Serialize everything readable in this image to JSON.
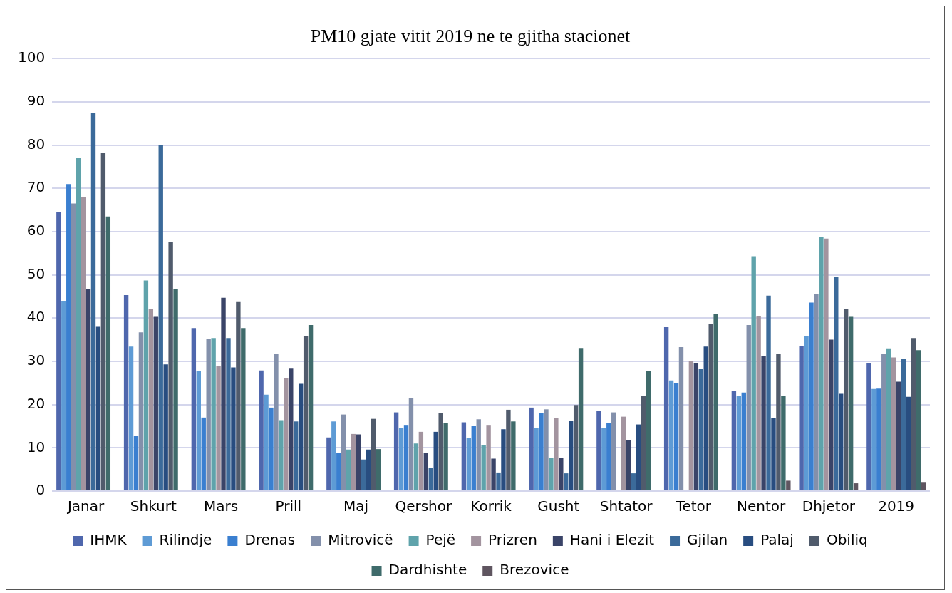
{
  "chart_data": {
    "type": "bar",
    "title": "PM10 gjate vitit 2019 ne te gjitha stacionet",
    "categories": [
      "Janar",
      "Shkurt",
      "Mars",
      "Prill",
      "Maj",
      "Qershor",
      "Korrik",
      "Gusht",
      "Shtator",
      "Tetor",
      "Nentor",
      "Dhjetor",
      "2019"
    ],
    "ylim": [
      0,
      100
    ],
    "yticks": [
      0,
      10,
      20,
      30,
      40,
      50,
      60,
      70,
      80,
      90,
      100
    ],
    "grid": "y",
    "legend": "bottom",
    "series": [
      {
        "name": "IHMK",
        "color": "#4f67ad",
        "values": [
          64.5,
          45.3,
          37.7,
          27.9,
          12.4,
          18.2,
          15.9,
          19.3,
          18.5,
          37.9,
          23.2,
          33.6,
          29.5
        ]
      },
      {
        "name": "Rilindje",
        "color": "#5e9bd5",
        "values": [
          44,
          33.4,
          27.8,
          22.3,
          16.1,
          14.5,
          12.3,
          14.6,
          14.5,
          25.6,
          22,
          35.8,
          23.6
        ]
      },
      {
        "name": "Drenas",
        "color": "#3a7fd0",
        "values": [
          71,
          12.7,
          17,
          19.3,
          8.9,
          15.3,
          15,
          18,
          15.8,
          25,
          22.8,
          43.6,
          23.7
        ]
      },
      {
        "name": "Mitrovicë",
        "color": "#8390ab",
        "values": [
          66.5,
          36.7,
          35.2,
          31.7,
          17.7,
          21.5,
          16.6,
          18.9,
          18.2,
          33.3,
          38.4,
          45.5,
          31.7
        ]
      },
      {
        "name": "Pejë",
        "color": "#5fa3ab",
        "values": [
          77,
          48.7,
          35.4,
          16.4,
          9.6,
          11,
          10.7,
          7.6,
          null,
          null,
          54.3,
          58.8,
          33
        ]
      },
      {
        "name": "Prizren",
        "color": "#a3949f",
        "values": [
          68,
          42.1,
          28.9,
          26.1,
          13.2,
          13.7,
          15.3,
          16.9,
          17.2,
          30.1,
          40.4,
          58.4,
          30.9
        ]
      },
      {
        "name": "Hani i Elezit",
        "color": "#3a4468",
        "values": [
          46.7,
          40.3,
          44.7,
          28.3,
          13.1,
          8.8,
          7.5,
          7.6,
          11.8,
          29.6,
          31.2,
          35,
          25.3
        ]
      },
      {
        "name": "Gjilan",
        "color": "#3b6a9a",
        "values": [
          87.5,
          80,
          35.4,
          16.1,
          7.3,
          5.3,
          4.3,
          4.1,
          4.1,
          28.2,
          45.2,
          49.5,
          30.6
        ]
      },
      {
        "name": "Palaj",
        "color": "#284d80",
        "values": [
          38,
          29.3,
          28.6,
          24.8,
          9.6,
          13.7,
          14.3,
          16.2,
          15.4,
          33.4,
          16.9,
          22.5,
          21.8
        ]
      },
      {
        "name": "Obiliq",
        "color": "#505b6c",
        "values": [
          78.3,
          57.7,
          43.7,
          35.8,
          16.7,
          18,
          18.8,
          19.9,
          22,
          38.7,
          31.8,
          42.2,
          35.4
        ]
      },
      {
        "name": "Dardhishte",
        "color": "#3f6b6b",
        "values": [
          63.5,
          46.7,
          37.7,
          38.4,
          9.7,
          15.8,
          16.1,
          33.1,
          27.7,
          40.9,
          22,
          40.3,
          32.6
        ]
      },
      {
        "name": "Brezovice",
        "color": "#5f5560",
        "values": [
          null,
          null,
          null,
          null,
          null,
          null,
          null,
          null,
          null,
          null,
          2.4,
          1.8,
          2.1
        ]
      }
    ]
  }
}
